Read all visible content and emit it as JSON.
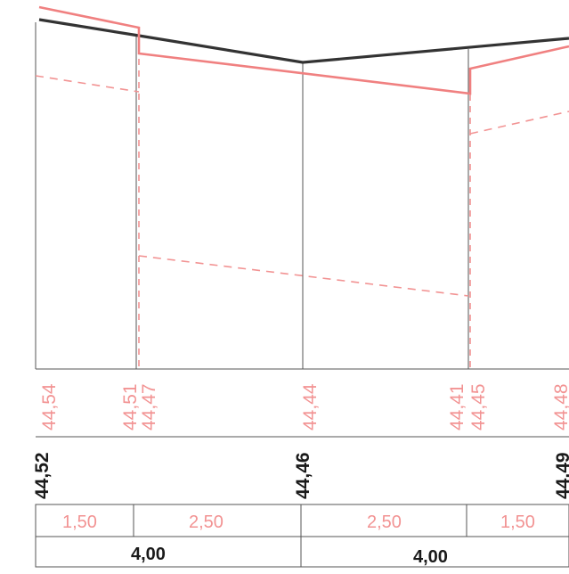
{
  "proposed_levels": [
    "44,54",
    "44,51",
    "44,47",
    "44,44",
    "44,41",
    "44,45",
    "44,48"
  ],
  "existing_levels": [
    "44,52",
    "44,46",
    "44,49"
  ],
  "segment_distances": [
    "1,50",
    "2,50",
    "2,50",
    "1,50"
  ],
  "total_distances": [
    "4,00",
    "4,00"
  ],
  "colors": {
    "existing": "#333333",
    "proposed": "#f08080",
    "grid": "#555555"
  }
}
